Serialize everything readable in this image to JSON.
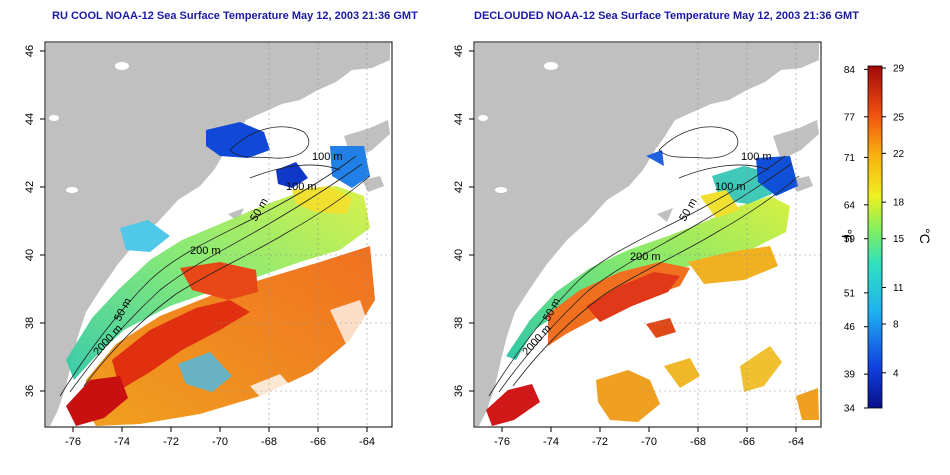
{
  "titles": {
    "left": "RU COOL NOAA-12 Sea Surface Temperature May 12, 2003 21:36 GMT",
    "right": "DECLOUDED NOAA-12 Sea Surface Temperature May 12, 2003 21:36 GMT"
  },
  "axes": {
    "x_ticks": [
      "-76",
      "-74",
      "-72",
      "-70",
      "-68",
      "-66",
      "-64"
    ],
    "y_ticks": [
      "36",
      "38",
      "40",
      "42",
      "44",
      "46"
    ]
  },
  "contours": {
    "left": [
      "100 m",
      "100 m",
      "50 m",
      "200 m",
      "50 m",
      "2000 m"
    ],
    "right": [
      "100 m",
      "100 m",
      "50 m",
      "200 m",
      "50 m",
      "2000 m"
    ]
  },
  "colorbar": {
    "fahrenheit_ticks": [
      "84",
      "77",
      "71",
      "64",
      "59",
      "51",
      "46",
      "39",
      "34"
    ],
    "celsius_ticks": [
      "29",
      "25",
      "22",
      "18",
      "15",
      "11",
      "8",
      "4"
    ],
    "unit_f": "°F",
    "unit_c": "°C"
  },
  "colors": {
    "land": "#c0c0c0",
    "title": "#1a1aa6",
    "cold": "#1030d0",
    "warm": "#c81010"
  }
}
